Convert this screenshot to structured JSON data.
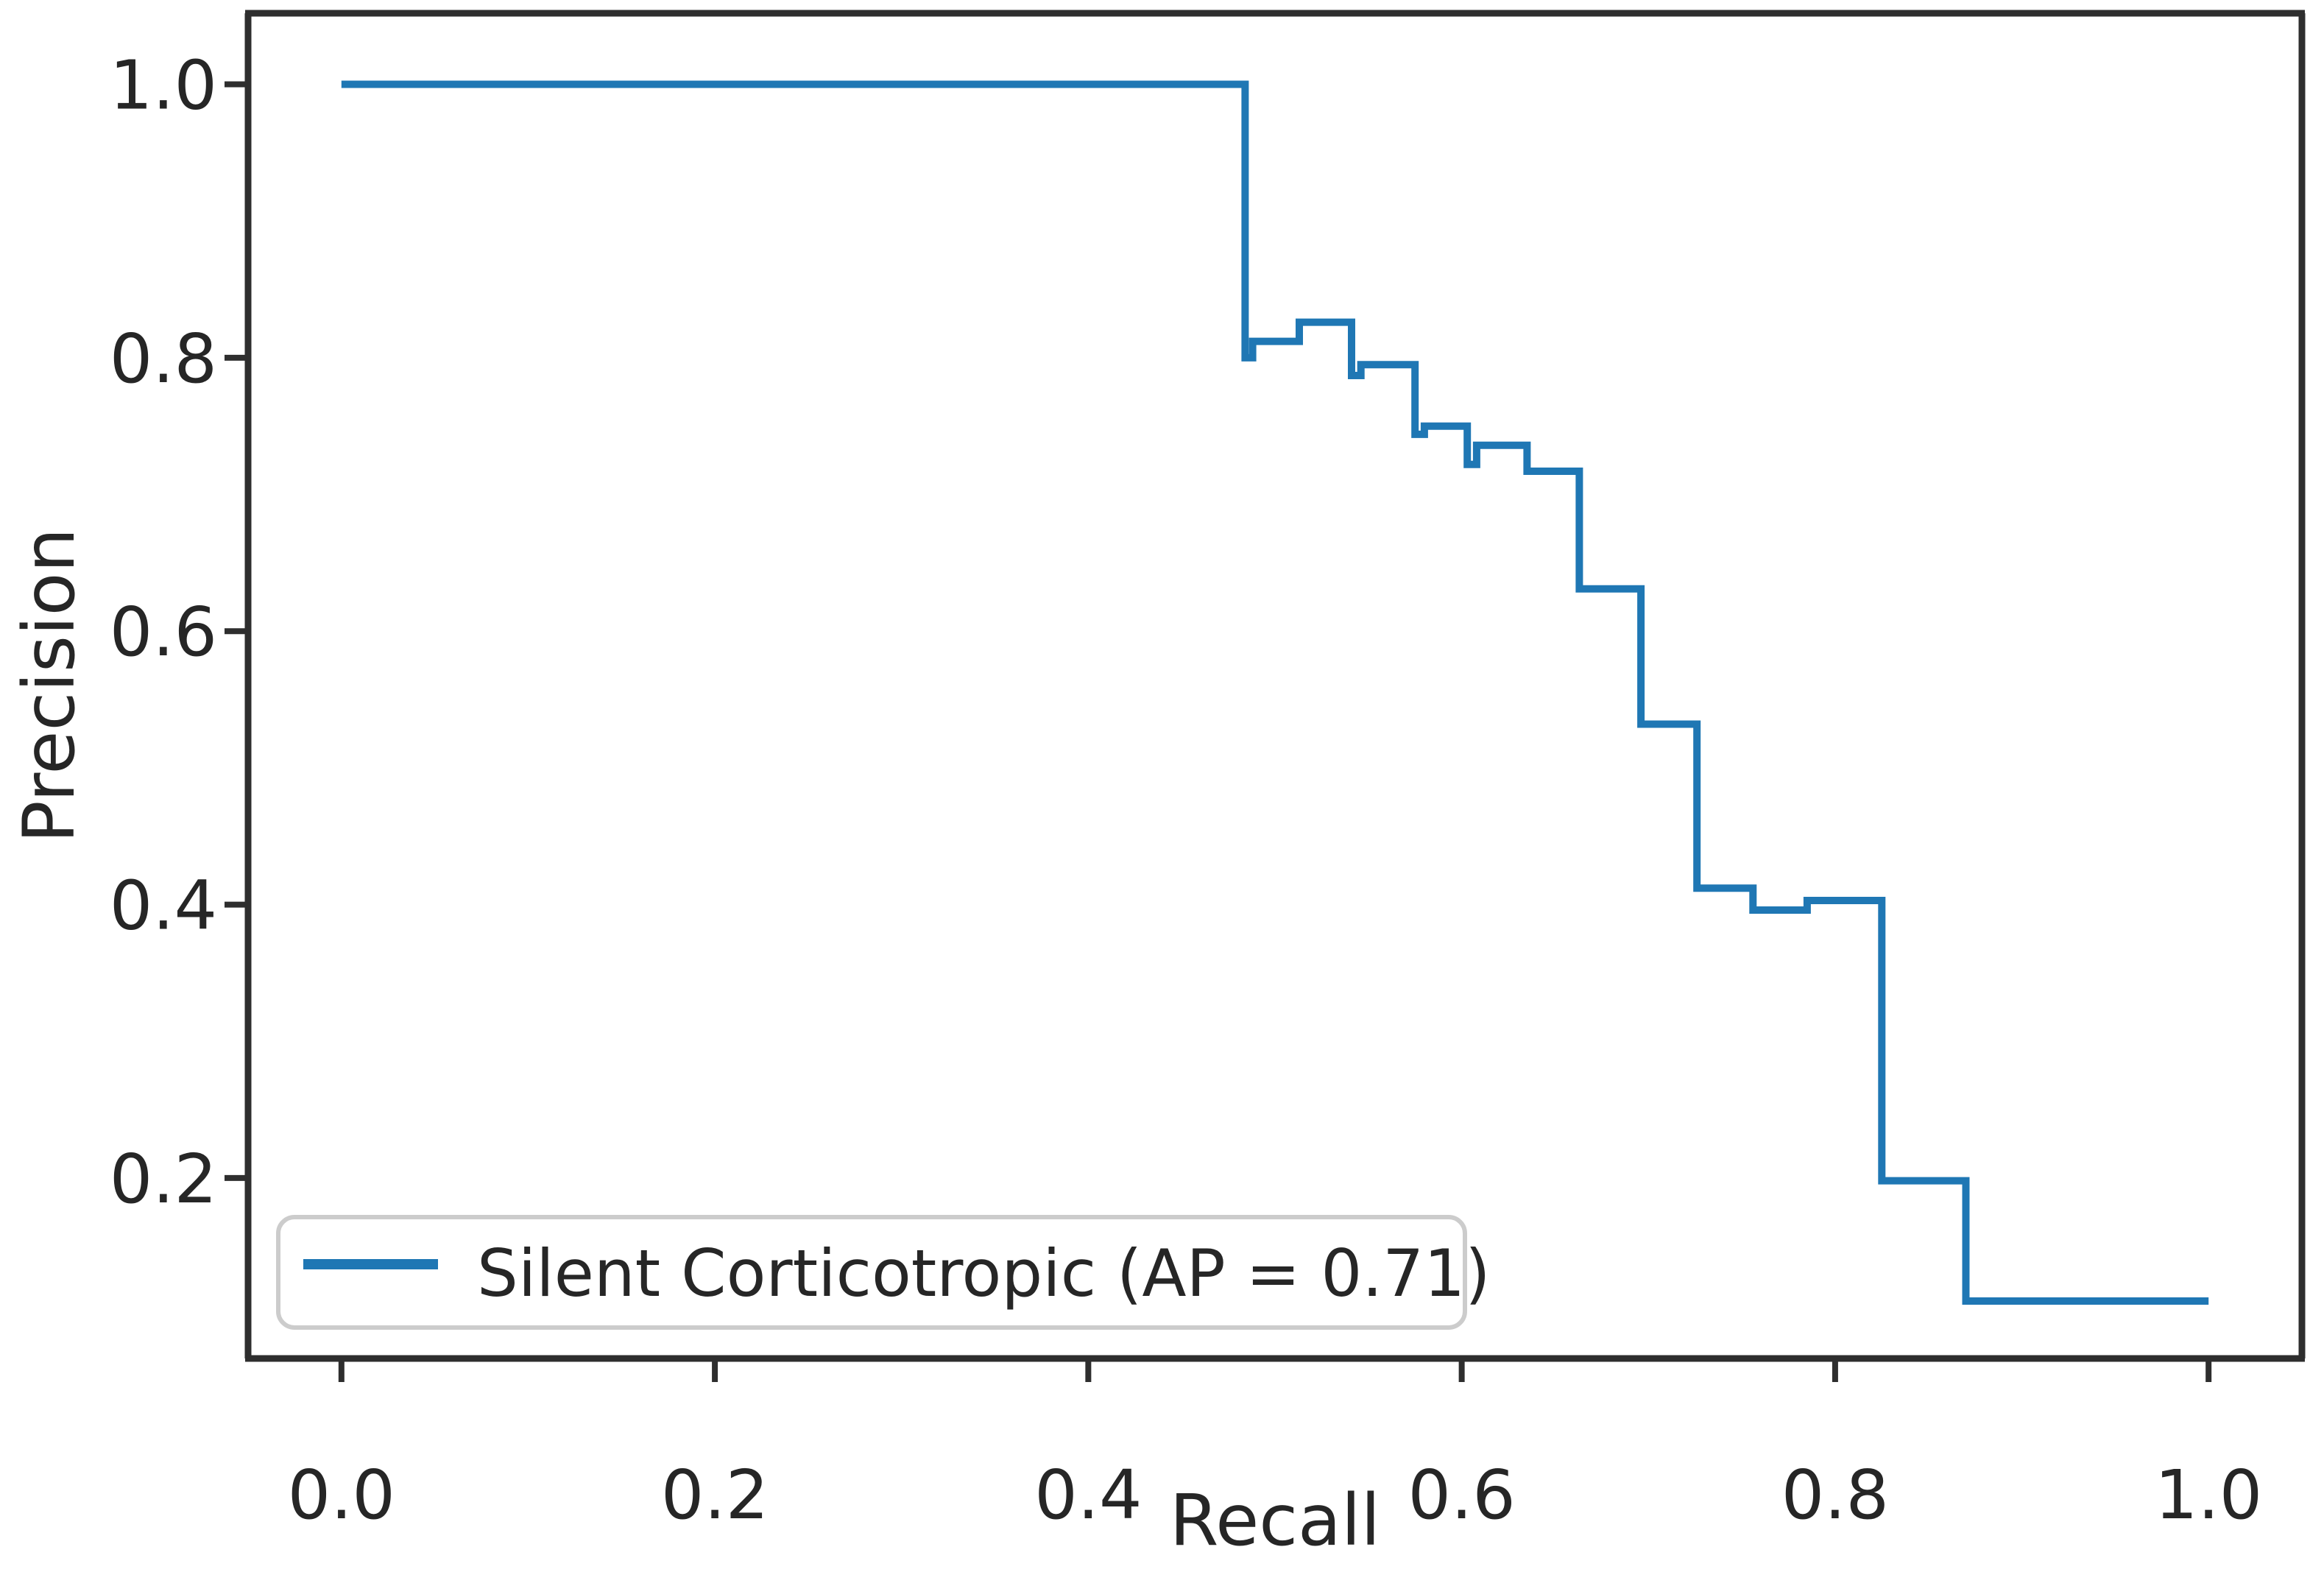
{
  "chart_data": {
    "type": "line",
    "subtype": "step-post",
    "title": "",
    "xlabel": "Recall",
    "ylabel": "Precision",
    "xlim": [
      -0.05,
      1.05
    ],
    "ylim": [
      0.068,
      1.052
    ],
    "grid": false,
    "x_ticks": {
      "values": [
        0.0,
        0.2,
        0.4,
        0.6,
        0.8,
        1.0
      ],
      "labels": [
        "0.0",
        "0.2",
        "0.4",
        "0.6",
        "0.8",
        "1.0"
      ]
    },
    "y_ticks": {
      "values": [
        0.2,
        0.4,
        0.6,
        0.8,
        1.0
      ],
      "labels": [
        "0.2",
        "0.4",
        "0.6",
        "0.8",
        "1.0"
      ]
    },
    "legend": {
      "position": "lower left",
      "label": "Silent Corticotropic (AP = 0.71)"
    },
    "series": [
      {
        "name": "Silent Corticotropic",
        "ap": 0.71,
        "color": "#1f77b4",
        "points": [
          [
            0.0,
            1.0
          ],
          [
            0.484,
            0.8
          ],
          [
            0.488,
            0.812
          ],
          [
            0.513,
            0.826
          ],
          [
            0.541,
            0.787
          ],
          [
            0.546,
            0.795
          ],
          [
            0.575,
            0.744
          ],
          [
            0.58,
            0.75
          ],
          [
            0.603,
            0.722
          ],
          [
            0.608,
            0.736
          ],
          [
            0.635,
            0.717
          ],
          [
            0.663,
            0.631
          ],
          [
            0.696,
            0.532
          ],
          [
            0.726,
            0.412
          ],
          [
            0.756,
            0.396
          ],
          [
            0.785,
            0.403
          ],
          [
            0.825,
            0.198
          ],
          [
            0.87,
            0.11
          ],
          [
            1.0,
            0.11
          ]
        ]
      }
    ],
    "colors": {
      "line": "#1f77b4",
      "spine": "#2e2e2e",
      "tick": "#2e2e2e",
      "text": "#262626",
      "legend_border": "#cccccc",
      "background": "#ffffff"
    }
  }
}
